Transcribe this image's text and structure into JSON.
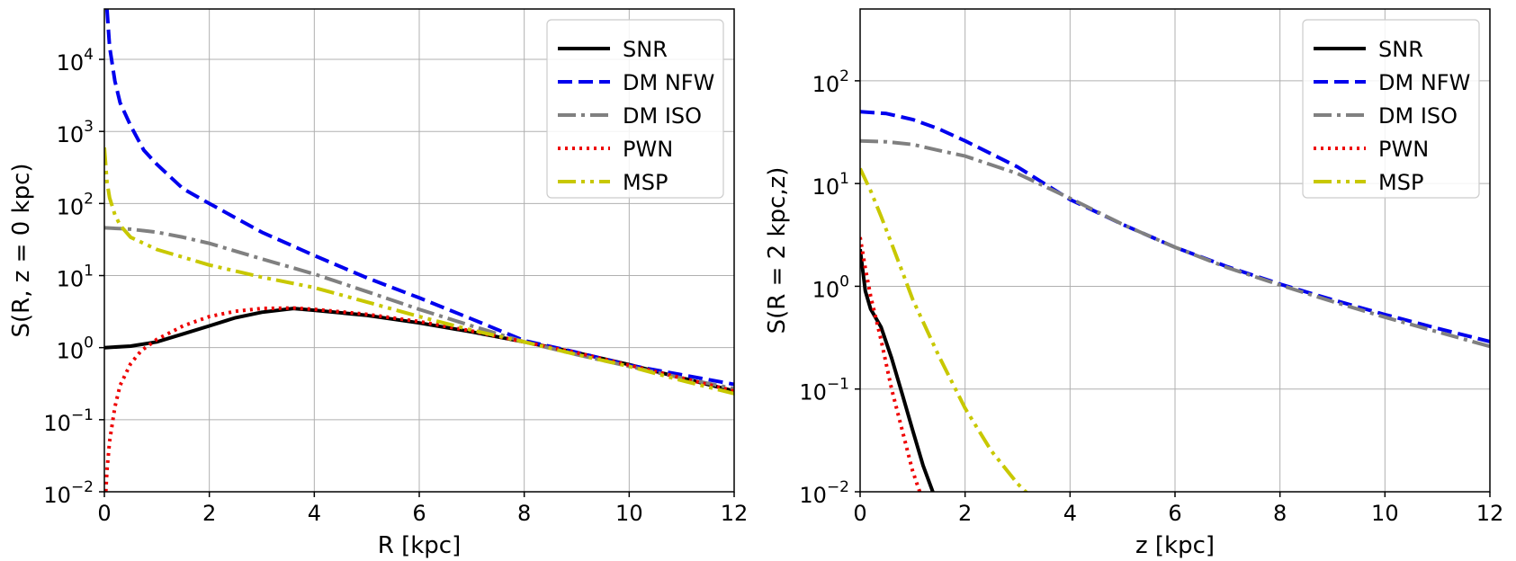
{
  "chart_data": [
    {
      "type": "line",
      "xlabel": "R [kpc]",
      "ylabel": "S(R, z = 0 kpc)",
      "xlim": [
        0,
        12
      ],
      "ylim": [
        0.01,
        50000
      ],
      "yscale": "log",
      "grid": true,
      "legend_position": "top-right",
      "xticks": [
        0,
        2,
        4,
        6,
        8,
        10,
        12
      ],
      "xtick_labels": [
        "0",
        "2",
        "4",
        "6",
        "8",
        "10",
        "12"
      ],
      "yticks": [
        0.01,
        0.1,
        1,
        10,
        100,
        1000,
        10000
      ],
      "ytick_labels": [
        {
          "base": "10",
          "exp": "−2"
        },
        {
          "base": "10",
          "exp": "−1"
        },
        {
          "base": "10",
          "exp": "0"
        },
        {
          "base": "10",
          "exp": "1"
        },
        {
          "base": "10",
          "exp": "2"
        },
        {
          "base": "10",
          "exp": "3"
        },
        {
          "base": "10",
          "exp": "4"
        }
      ],
      "series": [
        {
          "name": "SNR",
          "color": "#000000",
          "style": "solid",
          "x": [
            0,
            0.5,
            1,
            1.5,
            2,
            2.5,
            3,
            3.6,
            4,
            5,
            6,
            7,
            8,
            9,
            10,
            11,
            12
          ],
          "y": [
            1.0,
            1.05,
            1.2,
            1.55,
            2.0,
            2.6,
            3.1,
            3.5,
            3.3,
            2.8,
            2.2,
            1.65,
            1.2,
            0.85,
            0.58,
            0.38,
            0.25
          ]
        },
        {
          "name": "DM NFW",
          "color": "#0000ee",
          "style": "dashed",
          "x": [
            0.05,
            0.1,
            0.2,
            0.3,
            0.5,
            0.75,
            1,
            1.5,
            2,
            3,
            4,
            5,
            6,
            7,
            8,
            9,
            10,
            11,
            12
          ],
          "y": [
            50000,
            15000,
            5000,
            2500,
            1200,
            550,
            350,
            160,
            100,
            40,
            19,
            9.3,
            4.9,
            2.5,
            1.25,
            0.86,
            0.57,
            0.42,
            0.31
          ]
        },
        {
          "name": "DM ISO",
          "color": "#808080",
          "style": "dashdot",
          "x": [
            0,
            0.5,
            1,
            1.5,
            2,
            3,
            4,
            5,
            6,
            7,
            8,
            9,
            10,
            11,
            12
          ],
          "y": [
            46,
            44,
            40,
            34,
            28,
            17,
            10.5,
            6.0,
            3.4,
            2.0,
            1.2,
            0.8,
            0.55,
            0.38,
            0.27
          ]
        },
        {
          "name": "PWN",
          "color": "#ee0000",
          "style": "dotted",
          "x": [
            0.02,
            0.05,
            0.1,
            0.2,
            0.3,
            0.5,
            0.7,
            1,
            1.5,
            2,
            2.5,
            3,
            3.6,
            4,
            5,
            6,
            7,
            8,
            9,
            10,
            11,
            12
          ],
          "y": [
            0.008,
            0.02,
            0.05,
            0.15,
            0.3,
            0.6,
            0.9,
            1.3,
            2.0,
            2.7,
            3.2,
            3.5,
            3.55,
            3.4,
            2.9,
            2.3,
            1.7,
            1.2,
            0.85,
            0.57,
            0.38,
            0.25
          ]
        },
        {
          "name": "MSP",
          "color": "#c8c800",
          "style": "dashdotdot",
          "x": [
            0,
            0.05,
            0.1,
            0.2,
            0.3,
            0.5,
            1,
            1.5,
            2,
            3,
            4,
            5,
            6,
            7,
            8,
            9,
            10,
            11,
            12
          ],
          "y": [
            600,
            200,
            120,
            70,
            50,
            34,
            23,
            18,
            14,
            9.5,
            6.8,
            4.3,
            2.7,
            1.75,
            1.2,
            0.8,
            0.55,
            0.35,
            0.23
          ]
        }
      ]
    },
    {
      "type": "line",
      "xlabel": "z [kpc]",
      "ylabel": "S(R = 2 kpc,z)",
      "xlim": [
        0,
        12
      ],
      "ylim": [
        0.01,
        500
      ],
      "yscale": "log",
      "grid": true,
      "legend_position": "top-right",
      "xticks": [
        0,
        2,
        4,
        6,
        8,
        10,
        12
      ],
      "xtick_labels": [
        "0",
        "2",
        "4",
        "6",
        "8",
        "10",
        "12"
      ],
      "yticks": [
        0.01,
        0.1,
        1,
        10,
        100
      ],
      "ytick_labels": [
        {
          "base": "10",
          "exp": "−2"
        },
        {
          "base": "10",
          "exp": "−1"
        },
        {
          "base": "10",
          "exp": "0"
        },
        {
          "base": "10",
          "exp": "1"
        },
        {
          "base": "10",
          "exp": "2"
        }
      ],
      "series": [
        {
          "name": "SNR",
          "color": "#000000",
          "style": "solid",
          "x": [
            0,
            0.1,
            0.2,
            0.4,
            0.6,
            0.8,
            1.0,
            1.2,
            1.4
          ],
          "y": [
            2.3,
            0.9,
            0.6,
            0.4,
            0.2,
            0.09,
            0.04,
            0.018,
            0.0095
          ]
        },
        {
          "name": "DM NFW",
          "color": "#0000ee",
          "style": "dashed",
          "x": [
            0,
            0.5,
            1,
            1.5,
            2,
            3,
            4,
            5,
            6,
            7,
            8,
            9,
            10,
            11,
            12
          ],
          "y": [
            50,
            48,
            42,
            34,
            26,
            14.5,
            7.0,
            4.0,
            2.4,
            1.55,
            1.05,
            0.74,
            0.53,
            0.39,
            0.29
          ]
        },
        {
          "name": "DM ISO",
          "color": "#808080",
          "style": "dashdot",
          "x": [
            0,
            0.5,
            1,
            1.5,
            2,
            3,
            4,
            5,
            6,
            7,
            8,
            9,
            10,
            11,
            12
          ],
          "y": [
            26,
            25.5,
            24,
            21,
            18.5,
            12.5,
            7.2,
            4.0,
            2.4,
            1.52,
            1.03,
            0.71,
            0.5,
            0.36,
            0.26
          ]
        },
        {
          "name": "PWN",
          "color": "#ee0000",
          "style": "dotted",
          "x": [
            0,
            0.1,
            0.2,
            0.4,
            0.6,
            0.8,
            1.0,
            1.15
          ],
          "y": [
            3.0,
            1.5,
            0.8,
            0.3,
            0.1,
            0.04,
            0.016,
            0.0095
          ]
        },
        {
          "name": "MSP",
          "color": "#c8c800",
          "style": "dashdotdot",
          "x": [
            0,
            0.2,
            0.4,
            0.6,
            0.8,
            1.0,
            1.5,
            2.0,
            2.5,
            3.0,
            3.2
          ],
          "y": [
            14,
            8.5,
            4.8,
            2.6,
            1.4,
            0.75,
            0.21,
            0.065,
            0.025,
            0.012,
            0.0095
          ]
        }
      ]
    }
  ]
}
